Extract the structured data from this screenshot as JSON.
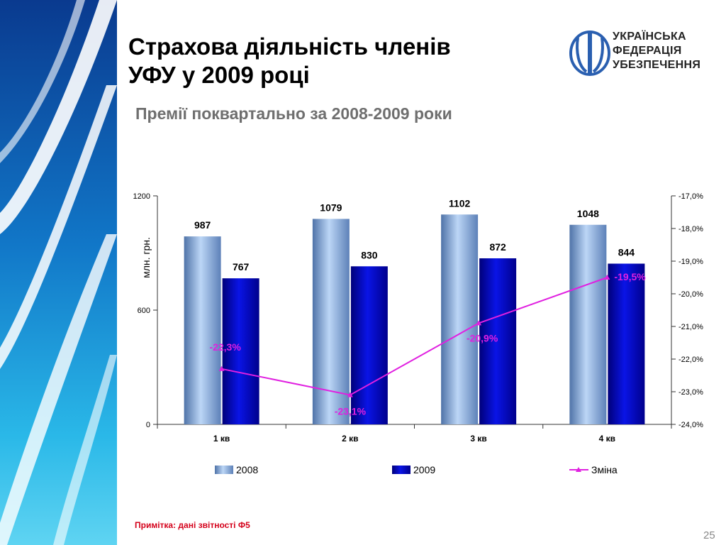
{
  "slide": {
    "title_line1": "Страхова діяльність членів",
    "title_line2": "УФУ у 2009 році",
    "subtitle": "Премії поквартально за 2008-2009 роки",
    "note": "Примітка: дані звітності Ф5",
    "page_number": "25",
    "logo": {
      "line1": "УКРАЇНСЬКА",
      "line2": "ФЕДЕРАЦІЯ",
      "line3": "УБЕЗПЕЧЕННЯ"
    }
  },
  "chart_data": {
    "type": "bar",
    "categories": [
      "1 кв",
      "2 кв",
      "3 кв",
      "4 кв"
    ],
    "ylabel": "млн. грн.",
    "ylim": [
      0,
      1200
    ],
    "yticks": [
      "0",
      "600",
      "1200"
    ],
    "y2lim": [
      -24.0,
      -17.0
    ],
    "y2ticks": [
      "-24,0%",
      "-23,0%",
      "-22,0%",
      "-21,0%",
      "-20,0%",
      "-19,0%",
      "-18,0%",
      "-17,0%"
    ],
    "series": [
      {
        "name": "2008",
        "values": [
          987,
          1079,
          1102,
          1048
        ],
        "labels": [
          "987",
          "1079",
          "1102",
          "1048"
        ],
        "color": "#8fb0dd"
      },
      {
        "name": "2009",
        "values": [
          767,
          830,
          872,
          844
        ],
        "labels": [
          "767",
          "830",
          "872",
          "844"
        ],
        "color": "#0000c8"
      }
    ],
    "line_series": {
      "name": "Зміна",
      "values": [
        -22.3,
        -23.1,
        -20.9,
        -19.5
      ],
      "labels": [
        "-22,3%",
        "-23,1%",
        "-20,9%",
        "-19,5%"
      ],
      "color": "#e020e0"
    },
    "legend": "bottom",
    "grid": false
  }
}
